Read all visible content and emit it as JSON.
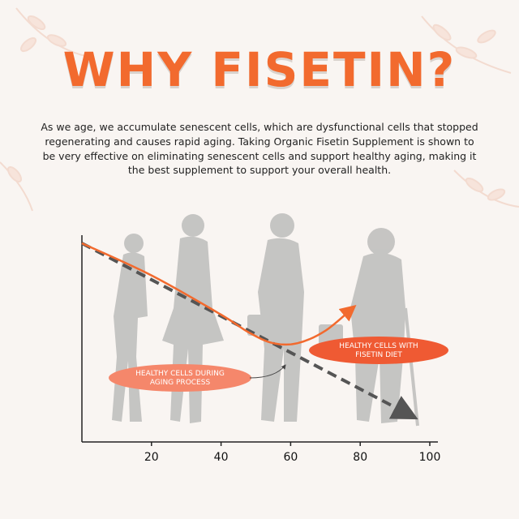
{
  "title": "WHY FISETIN?",
  "intro": "As we age, we accumulate senescent cells, which are dysfunctional cells that stopped regenerating and causes rapid aging. Taking Organic Fisetin Supplement is shown to be very effective on eliminating senescent cells and support healthy aging, making it the best supplement to support your overall health.",
  "colors": {
    "accent": "#f26a2e",
    "dashed_line": "#555555",
    "silhouette": "#bdbcbb",
    "pill_light": "#f5876b",
    "pill_dark": "#ef5a33"
  },
  "chart_data": {
    "type": "line",
    "x_ticks": [
      20,
      40,
      60,
      80,
      100
    ],
    "xlim": [
      0,
      100
    ],
    "series": [
      {
        "name": "HEALTHY CELLS DURING AGING PROCESS",
        "style": "dashed",
        "x": [
          0,
          95
        ],
        "y": [
          100,
          3
        ]
      },
      {
        "name": "HEALTHY CELLS WITH FISETIN DIET",
        "style": "solid",
        "x": [
          0,
          20,
          40,
          48,
          55,
          62,
          70,
          78
        ],
        "y": [
          100,
          82,
          60,
          50,
          44,
          44,
          51,
          64
        ]
      }
    ],
    "annotations": [
      {
        "text_lines": [
          "HEALTHY CELLS DURING",
          "AGING PROCESS"
        ]
      },
      {
        "text_lines": [
          "HEALTHY CELLS WITH",
          "FISETIN DIET"
        ]
      }
    ]
  }
}
